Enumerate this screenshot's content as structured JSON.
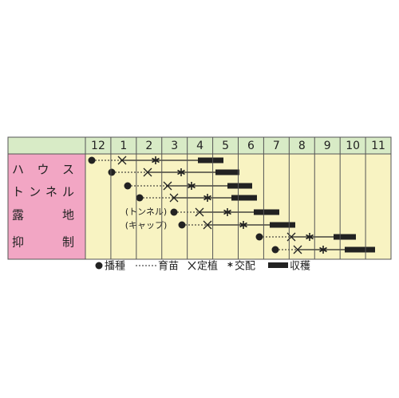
{
  "header": {
    "months": [
      "12",
      "1",
      "2",
      "3",
      "4",
      "5",
      "6",
      "7",
      "8",
      "9",
      "10",
      "11"
    ]
  },
  "rows": [
    "ハウス",
    "トンネル",
    "露地",
    "抑制"
  ],
  "notes": [
    "(トンネル)",
    "(キャップ)"
  ],
  "legend": [
    "播種",
    "育苗",
    "定植",
    "交配",
    "収穫"
  ]
}
